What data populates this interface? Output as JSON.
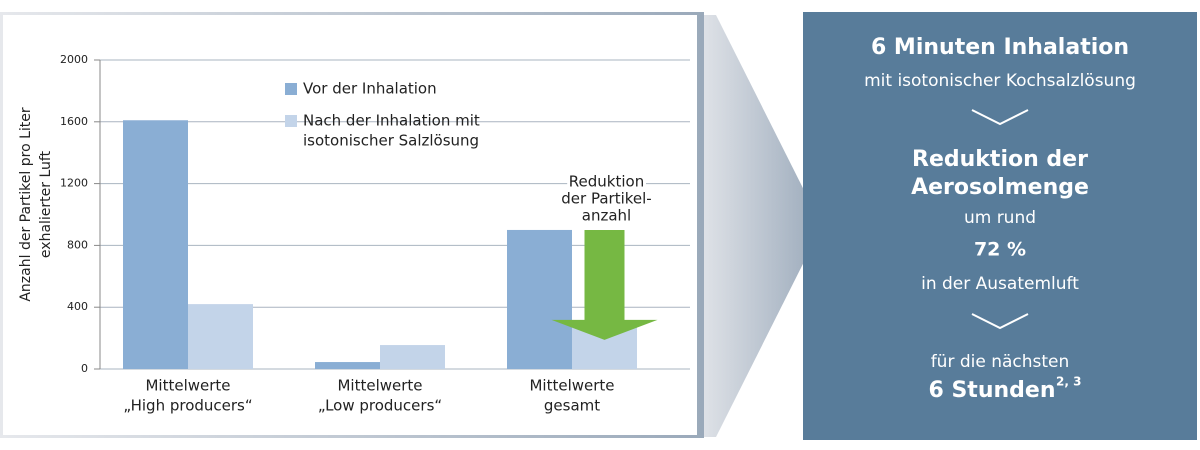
{
  "chart_data": {
    "type": "bar",
    "y_label": [
      "Anzahl der Partikel pro Liter",
      "exhalierter Luft"
    ],
    "categories": [
      [
        "Mittelwerte",
        "„High producers“"
      ],
      [
        "Mittelwerte",
        "„Low producers“"
      ],
      [
        "Mittelwerte",
        "gesamt"
      ]
    ],
    "series": [
      {
        "name": [
          "Vor der Inhalation"
        ],
        "color": "#8aaed4",
        "values": [
          1610,
          45,
          900
        ]
      },
      {
        "name": [
          "Nach der Inhalation mit",
          "isotonischer Salzlösung"
        ],
        "color": "#c3d4e9",
        "values": [
          420,
          155,
          305
        ]
      }
    ],
    "ylim": [
      0,
      2000
    ],
    "yticks": [
      0,
      400,
      800,
      1200,
      1600,
      2000
    ],
    "grid": true,
    "annotation": {
      "text": [
        "Reduktion",
        "der Partikel-",
        "anzahl"
      ],
      "color": "#76b843",
      "category": 2
    }
  },
  "panel": {
    "title": "6 Minuten Inhalation",
    "subtitle": "mit isotonischer Kochsalzlösung",
    "result": [
      "Reduktion der",
      "Aerosolmenge"
    ],
    "prefix": "um rund",
    "percent": "72 %",
    "suffix": "in der Ausatemluft",
    "duration_intro": "für die nächsten",
    "duration": "6 Stunden",
    "footnote": "2, 3"
  }
}
